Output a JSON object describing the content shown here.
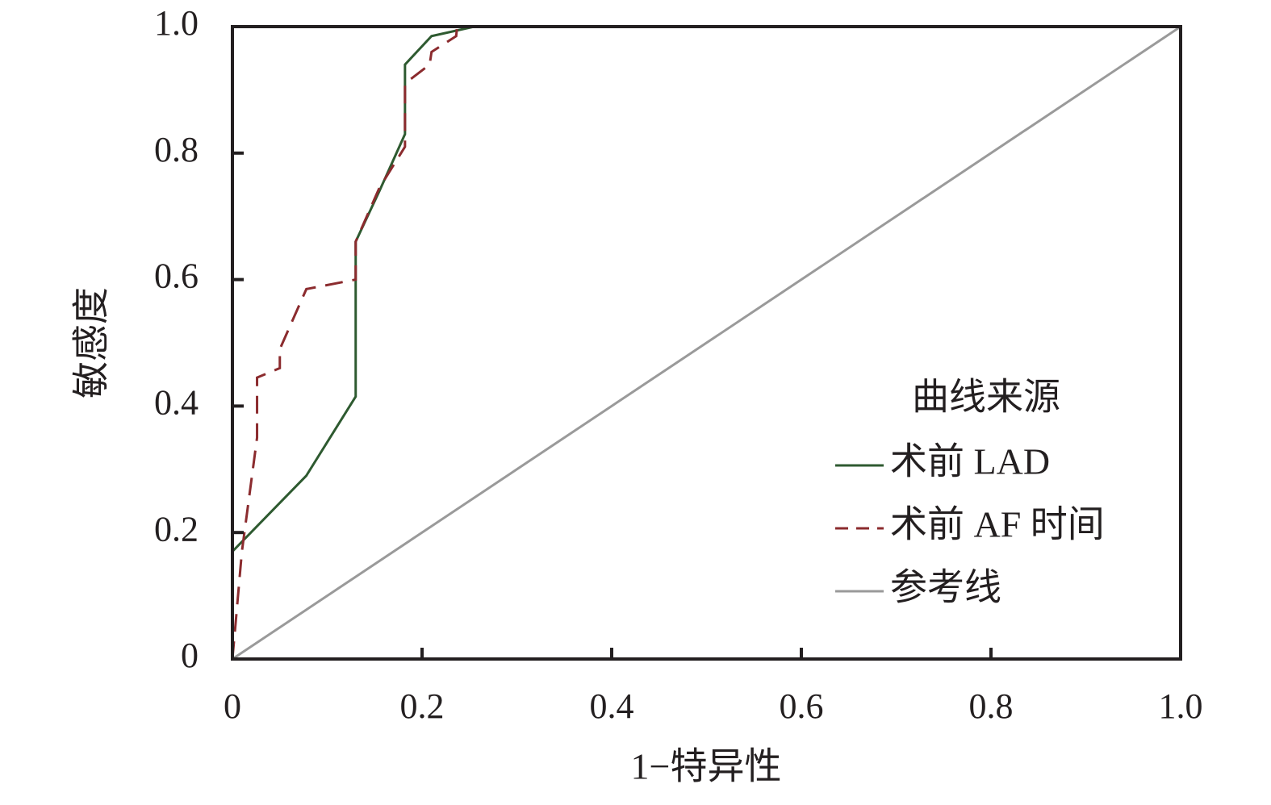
{
  "chart_data": {
    "type": "line",
    "xlabel": "1−特异性",
    "ylabel": "敏感度",
    "legend_title": "曲线来源",
    "legend": "lower right",
    "xlim": [
      0,
      1
    ],
    "ylim": [
      0,
      1
    ],
    "xticks": [
      0,
      0.2,
      0.4,
      0.6,
      0.8,
      {
        "value": 1,
        "label": "1.0"
      }
    ],
    "yticks": [
      0,
      0.2,
      0.4,
      0.6,
      0.8,
      {
        "value": 1,
        "label": "1.0"
      }
    ],
    "series": [
      {
        "name": "术前 LAD",
        "color": "#2e5a30",
        "dashed": false,
        "x": [
          0,
          0,
          0.078,
          0.13,
          0.13,
          0.155,
          0.182,
          0.182,
          0.21,
          0.255,
          1
        ],
        "values": [
          0,
          0.17,
          0.29,
          0.415,
          0.66,
          0.74,
          0.83,
          0.94,
          0.985,
          1,
          1
        ]
      },
      {
        "name": "术前 AF 时间",
        "color": "#8b2b2e",
        "dashed": true,
        "x": [
          0,
          0.003,
          0.01,
          0.026,
          0.026,
          0.05,
          0.05,
          0.078,
          0.13,
          0.13,
          0.155,
          0.182,
          0.182,
          0.208,
          0.21,
          0.236,
          0.237,
          1
        ],
        "values": [
          0,
          0.05,
          0.17,
          0.35,
          0.445,
          0.46,
          0.49,
          0.585,
          0.6,
          0.66,
          0.745,
          0.81,
          0.91,
          0.94,
          0.96,
          0.985,
          1,
          1
        ]
      },
      {
        "name": "参考线",
        "color": "#9a9a9a",
        "dashed": false,
        "x": [
          0,
          1
        ],
        "values": [
          0,
          1
        ]
      }
    ]
  }
}
